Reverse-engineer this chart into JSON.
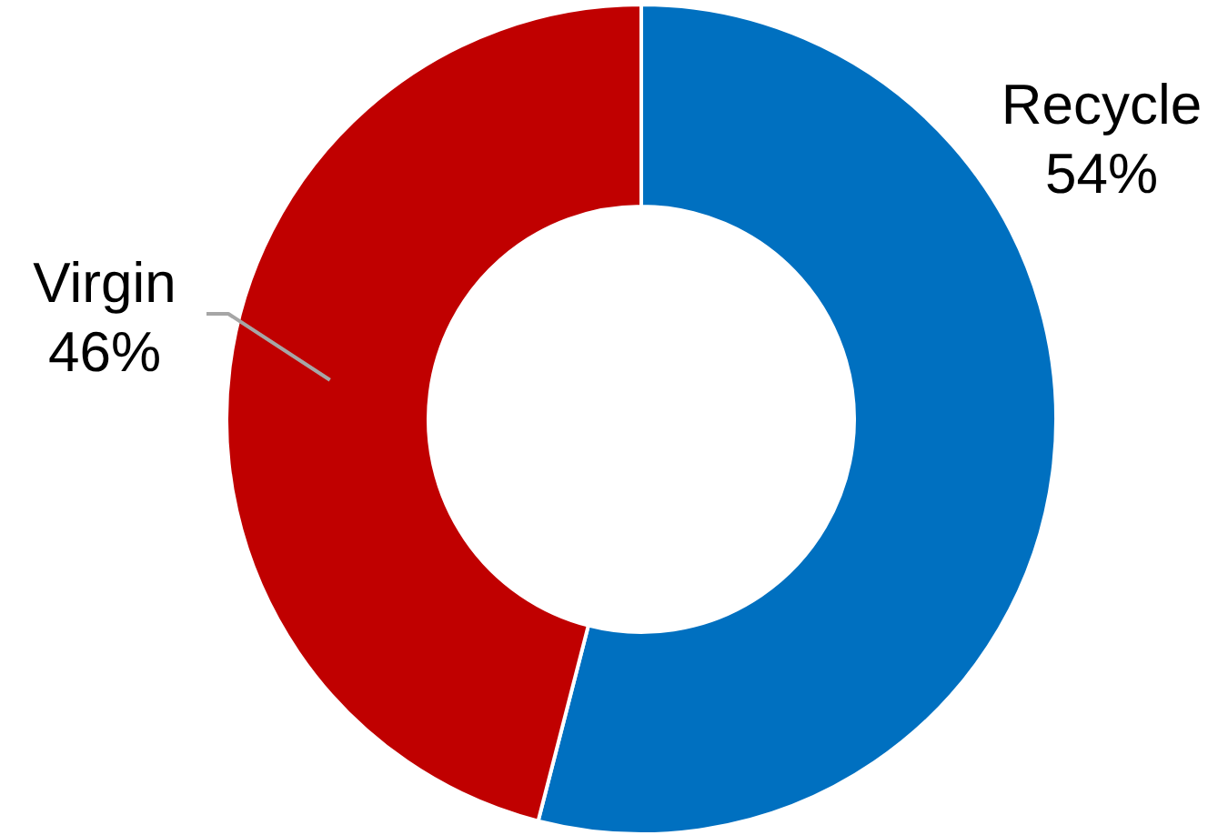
{
  "chart_data": {
    "type": "donut",
    "categories": [
      "Recycle",
      "Virgin"
    ],
    "values": [
      54,
      46
    ],
    "colors": [
      "#0070c0",
      "#c00000"
    ],
    "value_labels": [
      "54%",
      "46%"
    ]
  }
}
